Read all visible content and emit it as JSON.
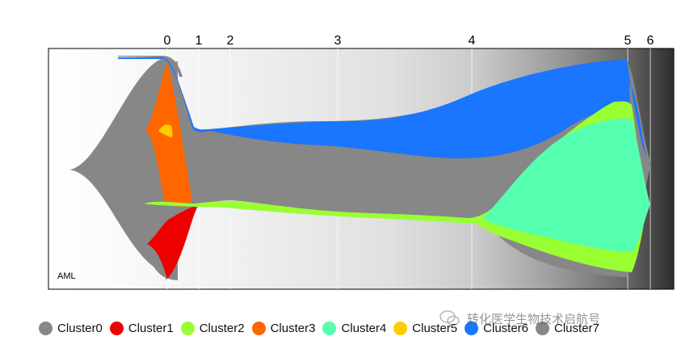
{
  "chart_data": {
    "type": "area",
    "subtype": "fishplot",
    "panel_label": "AML",
    "timepoints": [
      "0",
      "1",
      "2",
      "3",
      "4",
      "5",
      "6"
    ],
    "x": [
      0,
      1,
      2,
      3,
      4,
      5,
      6
    ],
    "series": [
      {
        "name": "Cluster0",
        "color": "#878787",
        "values": [
          100,
          100,
          100,
          100,
          100,
          100,
          100
        ]
      },
      {
        "name": "Cluster1",
        "color": "#ee0000",
        "values": [
          20,
          0,
          0,
          0,
          0,
          0,
          0
        ]
      },
      {
        "name": "Cluster2",
        "color": "#99ff33",
        "values": [
          2,
          1,
          2,
          1,
          1,
          60,
          1
        ]
      },
      {
        "name": "Cluster3",
        "color": "#ff6600",
        "values": [
          42,
          0,
          0,
          0,
          0,
          0,
          0
        ]
      },
      {
        "name": "Cluster4",
        "color": "#55ffb0",
        "values": [
          0,
          0,
          0,
          0,
          0,
          52,
          1
        ]
      },
      {
        "name": "Cluster5",
        "color": "#ffcc00",
        "values": [
          2,
          0,
          0,
          0,
          0,
          0,
          0
        ]
      },
      {
        "name": "Cluster6",
        "color": "#1a75ff",
        "values": [
          1,
          1,
          4,
          8,
          14,
          27,
          1
        ]
      },
      {
        "name": "Cluster7",
        "color": "#878787",
        "values": [
          0,
          0,
          0,
          0,
          0,
          0,
          0
        ]
      }
    ],
    "background": "white-to-black gradient",
    "grid": "vertical lines at timepoints",
    "legend_position": "bottom"
  },
  "legend": {
    "items": [
      {
        "label": "Cluster0",
        "color": "#878787"
      },
      {
        "label": "Cluster1",
        "color": "#ee0000"
      },
      {
        "label": "Cluster2",
        "color": "#99ff33"
      },
      {
        "label": "Cluster3",
        "color": "#ff6600"
      },
      {
        "label": "Cluster4",
        "color": "#55ffb0"
      },
      {
        "label": "Cluster5",
        "color": "#ffcc00"
      },
      {
        "label": "Cluster6",
        "color": "#1a75ff"
      },
      {
        "label": "Cluster7",
        "color": "#878787"
      }
    ]
  },
  "watermark": {
    "text": "转化医学生物技术启航号",
    "icon": "wechat-icon"
  }
}
